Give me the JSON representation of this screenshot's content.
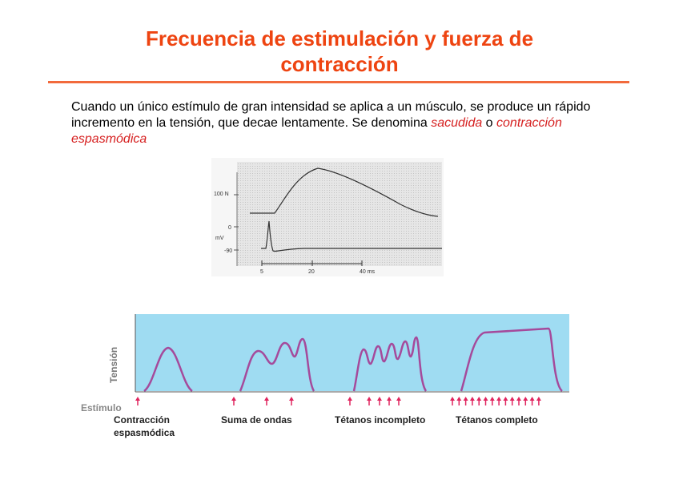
{
  "title_line1": "Frecuencia de estimulación y fuerza de",
  "title_line2": "contracción",
  "intro": {
    "part1": "Cuando un único estímulo de gran intensidad se aplica a un músculo, se produce un rápido incremento en la tensión, que decae lentamente. Se denomina ",
    "term1": "sacudida",
    "part2": " o ",
    "term2": "contracción espasmódica"
  },
  "top_graph": {
    "label_100n": "100 N",
    "label_0": "0",
    "label_mv": "mV",
    "label_90": "-90",
    "tick_5": "5",
    "tick_20": "20",
    "tick_end": "40 ms"
  },
  "bottom_graph": {
    "y_label": "Tensión",
    "stim_label": "Estímulo",
    "panel1_line1": "Contracción",
    "panel1_line2": "espasmódica",
    "panel2": "Suma de ondas",
    "panel3": "Tétanos incompleto",
    "panel4": "Tétanos completo"
  },
  "colors": {
    "title": "#ee4411",
    "rule": "#f26a3c",
    "highlight": "#d62020",
    "tension_bg": "#9fdcf2",
    "curve": "#a54a9b",
    "arrow": "#e0245e"
  }
}
